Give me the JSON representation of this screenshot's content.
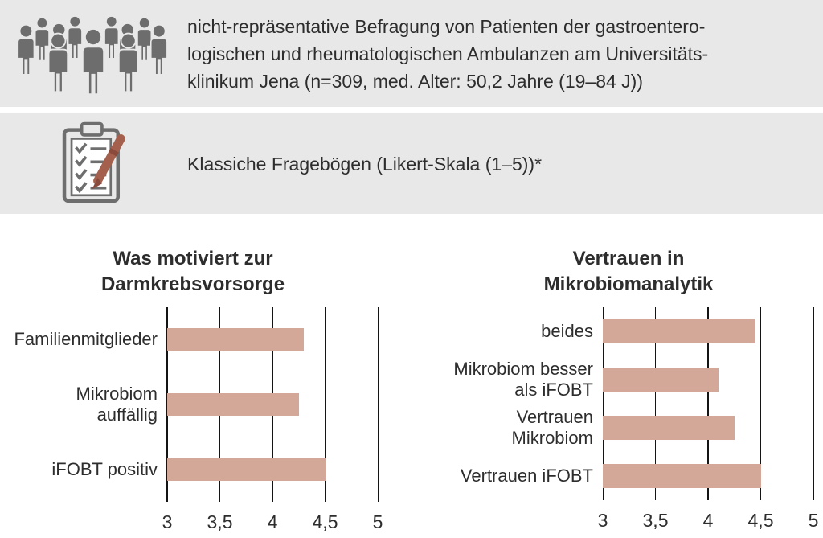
{
  "info_boxes": [
    {
      "name": "survey-info",
      "icon": "crowd-icon",
      "text": "nicht-repräsentative Befragung von Patienten der gastroentero-\nlogischen und rheumatologischen Ambulanzen am Universitäts-\nklinikum Jena (n=309, med. Alter: 50,2 Jahre (19–84 J))"
    },
    {
      "name": "questionnaire-info",
      "icon": "clipboard-pen-icon",
      "text": "Klassiche Fragebögen (Likert-Skala (1–5))*"
    }
  ],
  "chart_data": [
    {
      "type": "bar",
      "orientation": "horizontal",
      "title": "Was motiviert zur\nDarmkrebsvorsorge",
      "categories": [
        "Familienmitglieder",
        "Mikrobiom\nauffällig",
        "iFOBT positiv"
      ],
      "values": [
        4.3,
        4.25,
        4.5
      ],
      "xlim": [
        3,
        5
      ],
      "xticks": [
        3,
        3.5,
        4,
        4.5,
        5
      ],
      "xtick_labels": [
        "3",
        "3,5",
        "4",
        "4,5",
        "5"
      ],
      "grid": true,
      "legend": false,
      "thick_gridline": 3,
      "bar_color": "#d4a898"
    },
    {
      "type": "bar",
      "orientation": "horizontal",
      "title": "Vertrauen in\nMikrobiomanalytik",
      "categories": [
        "beides",
        "Mikrobiom besser\nals iFOBT",
        "Vertrauen\nMikrobiom",
        "Vertrauen iFOBT"
      ],
      "values": [
        4.45,
        4.1,
        4.25,
        4.5
      ],
      "xlim": [
        3,
        5
      ],
      "xticks": [
        3,
        3.5,
        4,
        4.5,
        5
      ],
      "xtick_labels": [
        "3",
        "3,5",
        "4",
        "4,5",
        "5"
      ],
      "grid": true,
      "legend": false,
      "thick_gridline": 4,
      "bar_color": "#d4a898"
    }
  ],
  "colors": {
    "section_bg": "#e9e8e8",
    "bar": "#d4a898",
    "grid": "#141414",
    "text": "#2d2d2d",
    "icon_gray": "#6d6d6d",
    "pen": "#a5604d"
  }
}
